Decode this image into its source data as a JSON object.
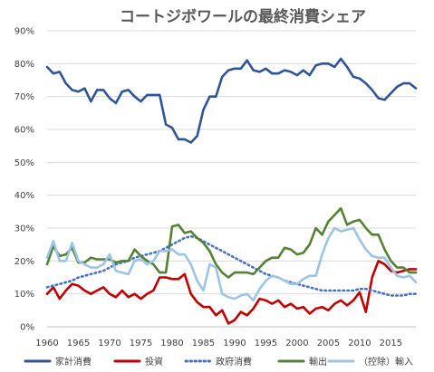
{
  "chart_data": {
    "type": "line",
    "title": "コートジボワールの最終消費シェア",
    "xlabel": "",
    "ylabel": "",
    "xlim": [
      1960,
      2019
    ],
    "ylim": [
      0,
      90
    ],
    "y_ticks": [
      "0%",
      "10%",
      "20%",
      "30%",
      "40%",
      "50%",
      "60%",
      "70%",
      "80%",
      "90%"
    ],
    "x_ticks": [
      "1960",
      "1965",
      "1970",
      "1975",
      "1980",
      "1985",
      "1990",
      "1995",
      "2000",
      "2005",
      "2010",
      "2015"
    ],
    "grid": "horizontal",
    "legend_position": "bottom",
    "x": [
      1960,
      1961,
      1962,
      1963,
      1964,
      1965,
      1966,
      1967,
      1968,
      1969,
      1970,
      1971,
      1972,
      1973,
      1974,
      1975,
      1976,
      1977,
      1978,
      1979,
      1980,
      1981,
      1982,
      1983,
      1984,
      1985,
      1986,
      1987,
      1988,
      1989,
      1990,
      1991,
      1992,
      1993,
      1994,
      1995,
      1996,
      1997,
      1998,
      1999,
      2000,
      2001,
      2002,
      2003,
      2004,
      2005,
      2006,
      2007,
      2008,
      2009,
      2010,
      2011,
      2012,
      2013,
      2014,
      2015,
      2016,
      2017,
      2018,
      2019
    ],
    "series": [
      {
        "name": "家計消費",
        "color": "#2F5597",
        "style": "solid",
        "width": 2.6,
        "values": [
          79,
          77,
          77.5,
          74,
          72,
          71.5,
          72.5,
          68.5,
          72,
          72,
          69.5,
          68,
          71.5,
          72,
          70,
          68.5,
          70.5,
          70.5,
          70.5,
          61.5,
          60.5,
          57,
          57,
          56,
          58,
          66,
          70,
          70,
          76,
          78,
          78.5,
          78.5,
          81,
          78,
          77.5,
          78.5,
          77,
          77,
          78,
          77.5,
          76.5,
          78,
          76.5,
          79.5,
          80,
          80,
          79,
          81.5,
          79,
          76,
          75.5,
          74,
          72,
          69.5,
          69,
          71,
          73,
          74,
          74,
          72.5
        ]
      },
      {
        "name": "投資",
        "color": "#C00000",
        "style": "solid",
        "width": 2.6,
        "values": [
          10,
          12,
          8.5,
          11,
          13,
          12.5,
          11,
          10,
          11,
          12,
          10,
          9,
          11,
          9,
          10,
          8.5,
          10,
          11,
          15,
          15,
          14.5,
          14.5,
          16,
          10,
          7.5,
          6,
          6,
          3.5,
          5,
          1,
          2,
          4.5,
          3.5,
          5.5,
          8.5,
          8,
          7,
          8,
          6,
          7,
          5.5,
          6,
          4,
          5.5,
          6,
          5,
          7,
          8,
          6.5,
          8,
          10.5,
          4.5,
          15,
          20,
          19,
          17,
          16.5,
          17,
          17.5,
          17.5
        ]
      },
      {
        "name": "政府消費",
        "color": "#4472C4",
        "style": "dotted",
        "width": 2.6,
        "values": [
          12,
          12.5,
          13,
          13.5,
          14,
          15,
          15.5,
          16,
          16.5,
          17,
          18,
          19,
          19.5,
          20,
          21,
          21.5,
          22,
          22.5,
          23,
          24,
          25,
          26,
          27,
          27.5,
          27,
          26,
          25,
          24,
          23,
          22,
          21,
          20,
          19,
          18,
          17,
          16,
          15.5,
          15,
          14,
          13.5,
          13,
          12.5,
          12,
          11.5,
          11,
          11,
          11,
          11,
          11,
          11,
          11.5,
          11.5,
          11,
          10.5,
          10,
          9.5,
          9.5,
          9.5,
          10,
          10
        ]
      },
      {
        "name": "輸出",
        "color": "#548235",
        "style": "solid",
        "width": 2.6,
        "values": [
          19,
          24.5,
          21.5,
          22,
          24,
          19.5,
          19.5,
          21,
          20.5,
          20.5,
          20.5,
          19.5,
          20,
          20,
          23.5,
          21.5,
          20,
          19,
          16.5,
          16.5,
          30.5,
          31,
          28.5,
          29,
          27,
          25.5,
          23,
          19,
          16.5,
          15,
          16.5,
          16.5,
          16.5,
          16,
          18,
          20,
          21,
          21,
          24,
          23.5,
          22,
          22.5,
          25,
          30,
          28,
          32,
          34,
          36,
          31,
          32,
          32.5,
          30,
          28,
          28,
          23.5,
          20,
          18,
          18,
          16.5,
          16.5
        ]
      },
      {
        "name": "（控除）輸入",
        "color": "#9DC3E6",
        "style": "solid",
        "width": 2.6,
        "values": [
          21,
          26,
          20,
          20,
          25.5,
          20,
          19,
          18,
          18,
          19,
          22,
          17,
          16.5,
          16,
          20,
          20.5,
          19,
          20,
          23,
          23,
          23.5,
          22,
          22,
          19,
          14,
          11,
          19,
          18,
          10,
          9,
          8.5,
          9.5,
          10,
          8,
          11.5,
          14,
          15.5,
          15,
          14,
          13,
          13,
          14.5,
          15.5,
          15.5,
          22,
          27,
          30,
          29,
          29.5,
          30,
          26.5,
          23.5,
          21.5,
          21,
          21,
          18,
          15.5,
          15,
          15.5,
          13.5
        ]
      }
    ]
  }
}
